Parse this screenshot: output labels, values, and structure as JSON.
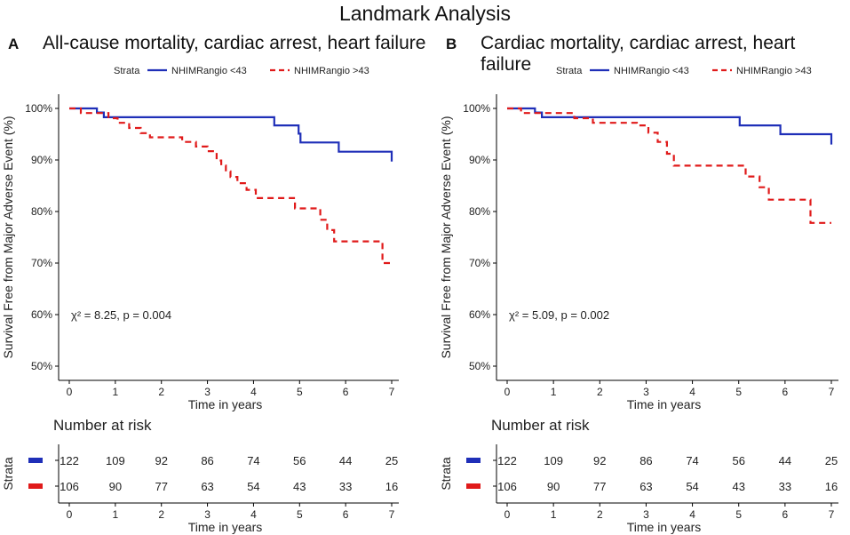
{
  "title": "Landmark Analysis",
  "panels": [
    {
      "letter": "A",
      "title": "All-cause mortality, cardiac arrest, heart failure"
    },
    {
      "letter": "B",
      "title": "Cardiac mortality, cardiac arrest, heart failure"
    }
  ],
  "colors": {
    "blue": "#1f2fb8",
    "red": "#e01a1a",
    "axis": "#000000",
    "text": "#222222"
  },
  "chart_data": [
    {
      "type": "line",
      "title": "All-cause mortality, cardiac arrest, heart failure",
      "xlabel": "Time in years",
      "ylabel": "Survival Free from Major Adverse Event (%)",
      "xlim": [
        0,
        7
      ],
      "ylim": [
        50,
        100
      ],
      "xticks": [
        "0",
        "1",
        "2",
        "3",
        "4",
        "5",
        "6",
        "7"
      ],
      "yticks": [
        "50%",
        "60%",
        "70%",
        "80%",
        "90%",
        "100%"
      ],
      "legend": {
        "title": "Strata",
        "position": "top"
      },
      "annotation": "χ² = 8.25, p = 0.004",
      "series": [
        {
          "name": "NHIMRangio <43",
          "style": "solid",
          "x": [
            0,
            0.6,
            0.75,
            4.2,
            4.45,
            4.98,
            5.02,
            5.85,
            7
          ],
          "y": [
            100,
            99.2,
            98.3,
            98.3,
            96.7,
            95.1,
            93.4,
            91.6,
            89.7
          ]
        },
        {
          "name": "NHIMRangio >43",
          "style": "dashed",
          "x": [
            0,
            0.25,
            0.45,
            0.85,
            1.05,
            1.3,
            1.55,
            1.75,
            2.0,
            2.45,
            2.75,
            3.0,
            3.2,
            3.3,
            3.4,
            3.5,
            3.65,
            3.85,
            4.05,
            4.9,
            5.2,
            5.45,
            5.6,
            5.75,
            6.55,
            6.8,
            7
          ],
          "y": [
            100,
            99.1,
            99.1,
            98.1,
            97.2,
            96.2,
            95.2,
            94.4,
            94.4,
            93.5,
            92.6,
            91.7,
            89.9,
            88.9,
            87.8,
            86.7,
            85.5,
            84.2,
            82.6,
            80.6,
            80.6,
            78.4,
            76.4,
            74.2,
            74.2,
            70.0,
            70.0
          ]
        }
      ],
      "risk_table": {
        "title": "Number at risk",
        "row_label": "Strata",
        "xlabel": "Time in years",
        "xticks": [
          "0",
          "1",
          "2",
          "3",
          "4",
          "5",
          "6",
          "7"
        ],
        "rows": [
          [
            "122",
            "109",
            "92",
            "86",
            "74",
            "56",
            "44",
            "25"
          ],
          [
            "106",
            "90",
            "77",
            "63",
            "54",
            "43",
            "33",
            "16"
          ]
        ]
      }
    },
    {
      "type": "line",
      "title": "Cardiac mortality, cardiac arrest, heart failure",
      "xlabel": "Time in years",
      "ylabel": "Survival Free from Major Adverse Event (%)",
      "xlim": [
        0,
        7
      ],
      "ylim": [
        50,
        100
      ],
      "xticks": [
        "0",
        "1",
        "2",
        "3",
        "4",
        "5",
        "6",
        "7"
      ],
      "yticks": [
        "50%",
        "60%",
        "70%",
        "80%",
        "90%",
        "100%"
      ],
      "legend": {
        "title": "Strata",
        "position": "top"
      },
      "annotation": "χ² = 5.09, p = 0.002",
      "series": [
        {
          "name": "NHIMRangio <43",
          "style": "solid",
          "x": [
            0,
            0.6,
            0.75,
            4.2,
            5.02,
            5.9,
            7
          ],
          "y": [
            100,
            99.2,
            98.3,
            98.3,
            96.7,
            95.0,
            93.0
          ]
        },
        {
          "name": "NHIMRangio >43",
          "style": "dashed",
          "x": [
            0,
            0.3,
            0.7,
            1.05,
            1.45,
            1.85,
            2.8,
            3.05,
            3.25,
            3.45,
            3.6,
            4.85,
            5.15,
            5.45,
            5.65,
            6.55,
            7
          ],
          "y": [
            100,
            99.1,
            99.1,
            99.1,
            98.1,
            97.2,
            96.7,
            95.3,
            93.5,
            91.2,
            88.9,
            88.9,
            86.8,
            84.7,
            82.3,
            77.8,
            77.8
          ]
        }
      ],
      "risk_table": {
        "title": "Number at risk",
        "row_label": "Strata",
        "xlabel": "Time in years",
        "xticks": [
          "0",
          "1",
          "2",
          "3",
          "4",
          "5",
          "6",
          "7"
        ],
        "rows": [
          [
            "122",
            "109",
            "92",
            "86",
            "74",
            "56",
            "44",
            "25"
          ],
          [
            "106",
            "90",
            "77",
            "63",
            "54",
            "43",
            "33",
            "16"
          ]
        ]
      }
    }
  ]
}
